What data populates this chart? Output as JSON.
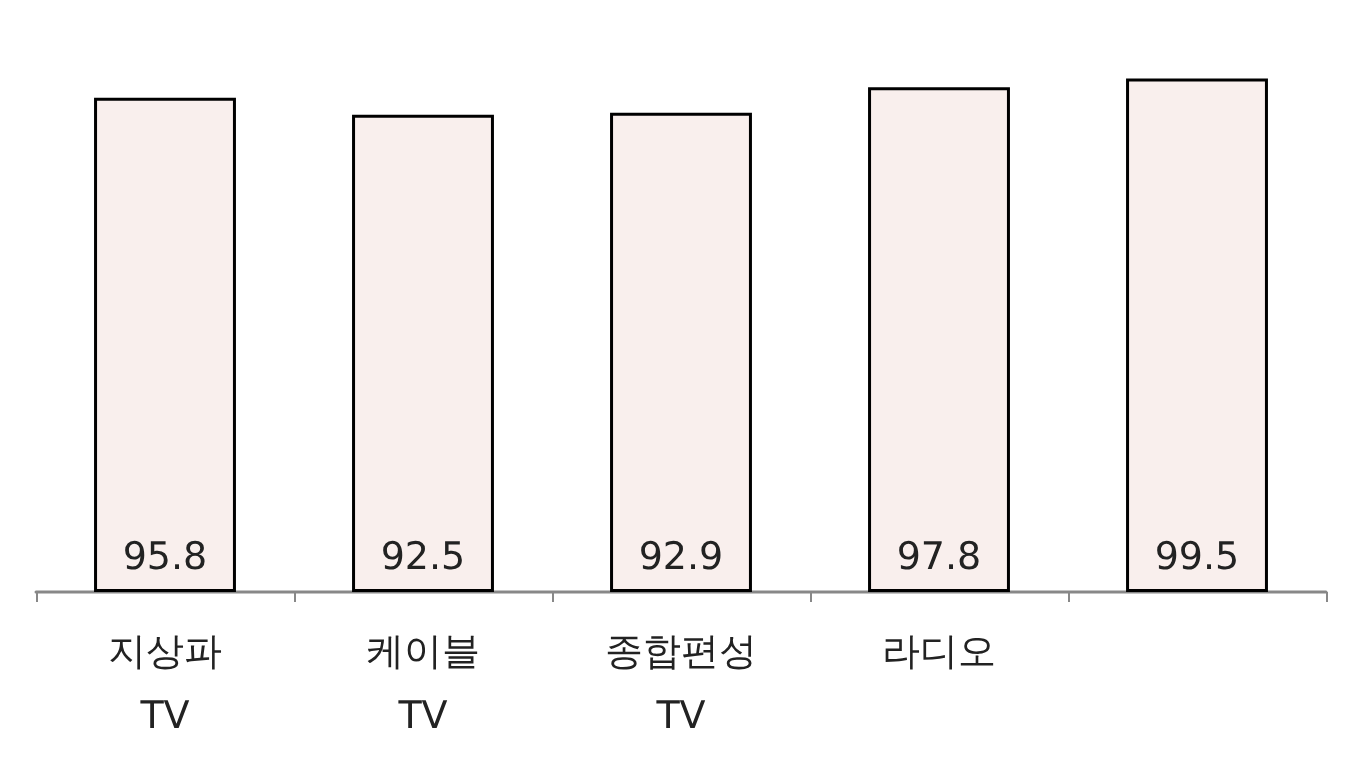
{
  "chart_data": {
    "type": "bar",
    "categories": [
      "지상파\nTV",
      "케이블\nTV",
      "종합편성\nTV",
      "라디오",
      null
    ],
    "values": [
      95.8,
      92.5,
      92.9,
      97.8,
      99.5
    ],
    "color": "#f9efed",
    "data_labels": true
  }
}
